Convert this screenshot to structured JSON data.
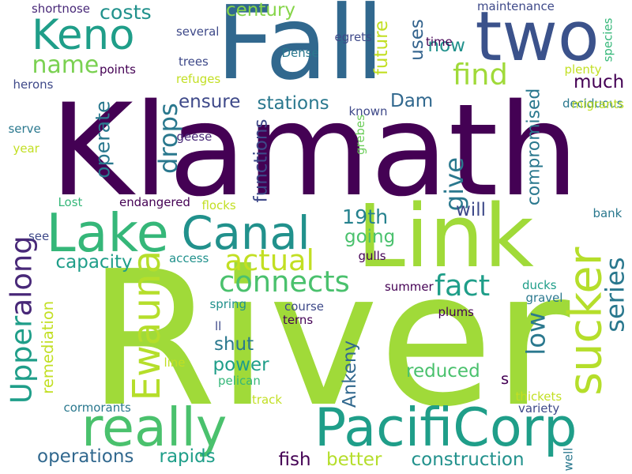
{
  "words": [
    {
      "text": "River",
      "color": "#a0da39"
    },
    {
      "text": "Klamath",
      "color": "#440154"
    },
    {
      "text": "Fall",
      "color": "#31688e"
    },
    {
      "text": "Link",
      "color": "#a0da39"
    },
    {
      "text": "two",
      "color": "#3b528b"
    },
    {
      "text": "Lake",
      "color": "#35b779"
    },
    {
      "text": "PacifiCorp",
      "color": "#1f9e89"
    },
    {
      "text": "really",
      "color": "#4ac16d"
    },
    {
      "text": "sucker",
      "color": "#b5de2b"
    },
    {
      "text": "Canal",
      "color": "#21918c"
    },
    {
      "text": "Keno",
      "color": "#1f9e89"
    },
    {
      "text": "Ewauna",
      "color": "#b5de2b"
    },
    {
      "text": "Upper",
      "color": "#1f9e89"
    },
    {
      "text": "along",
      "color": "#482878"
    },
    {
      "text": "fact",
      "color": "#1f9e89"
    },
    {
      "text": "connects",
      "color": "#4ac16d"
    },
    {
      "text": "actual",
      "color": "#c2df23"
    },
    {
      "text": "drops",
      "color": "#2a788e"
    },
    {
      "text": "give",
      "color": "#2a788e"
    },
    {
      "text": "series",
      "color": "#2a788e"
    },
    {
      "text": "find",
      "color": "#a0da39"
    },
    {
      "text": "low",
      "color": "#2a788e"
    },
    {
      "text": "name",
      "color": "#7ad151"
    },
    {
      "text": "century",
      "color": "#86d549"
    },
    {
      "text": "costs",
      "color": "#21918c"
    },
    {
      "text": "future",
      "color": "#c2df23"
    },
    {
      "text": "stations",
      "color": "#2a788e"
    },
    {
      "text": "ensure",
      "color": "#3e4989"
    },
    {
      "text": "operate",
      "color": "#2a788e"
    },
    {
      "text": "functions",
      "color": "#3e4989"
    },
    {
      "text": "compromised",
      "color": "#2a788e"
    },
    {
      "text": "much",
      "color": "#440154"
    },
    {
      "text": "now",
      "color": "#21918c"
    },
    {
      "text": "uses",
      "color": "#33638d"
    },
    {
      "text": "Dam",
      "color": "#31688e"
    },
    {
      "text": "19th",
      "color": "#26828e"
    },
    {
      "text": "going",
      "color": "#4ac16d"
    },
    {
      "text": "will",
      "color": "#3e4989"
    },
    {
      "text": "capacity",
      "color": "#1f9e89"
    },
    {
      "text": "shut",
      "color": "#2a788e"
    },
    {
      "text": "power",
      "color": "#1f9e89"
    },
    {
      "text": "reduced",
      "color": "#4ac16d"
    },
    {
      "text": "Ankeny",
      "color": "#31688e"
    },
    {
      "text": "operations",
      "color": "#31688e"
    },
    {
      "text": "rapids",
      "color": "#1f9e89"
    },
    {
      "text": "fish",
      "color": "#440154"
    },
    {
      "text": "better",
      "color": "#b5de2b"
    },
    {
      "text": "construction",
      "color": "#21918c"
    },
    {
      "text": "remediation",
      "color": "#c2df23"
    },
    {
      "text": "s",
      "color": "#440154"
    },
    {
      "text": "shortnose",
      "color": "#482878"
    },
    {
      "text": "several",
      "color": "#3e4989"
    },
    {
      "text": "egrets",
      "color": "#3e4989"
    },
    {
      "text": "time",
      "color": "#440154"
    },
    {
      "text": "maintenance",
      "color": "#3e4989"
    },
    {
      "text": "species",
      "color": "#35b779"
    },
    {
      "text": "plenty",
      "color": "#c2df23"
    },
    {
      "text": "Dense",
      "color": "#2a788e"
    },
    {
      "text": "trees",
      "color": "#3e4989"
    },
    {
      "text": "points",
      "color": "#440154"
    },
    {
      "text": "refuges",
      "color": "#c2df23"
    },
    {
      "text": "herons",
      "color": "#3e4989"
    },
    {
      "text": "known",
      "color": "#3e4989"
    },
    {
      "text": "deciduous",
      "color": "#2a788e"
    },
    {
      "text": "migrants",
      "color": "#c2df23"
    },
    {
      "text": "geese",
      "color": "#482878"
    },
    {
      "text": "grebes",
      "color": "#6ccd5a"
    },
    {
      "text": "serve",
      "color": "#2a788e"
    },
    {
      "text": "year",
      "color": "#c2df23"
    },
    {
      "text": "Lost",
      "color": "#35b779"
    },
    {
      "text": "endangered",
      "color": "#440154"
    },
    {
      "text": "flocks",
      "color": "#c2df23"
    },
    {
      "text": "bank",
      "color": "#2a788e"
    },
    {
      "text": "see",
      "color": "#3e4989"
    },
    {
      "text": "access",
      "color": "#21918c"
    },
    {
      "text": "gulls",
      "color": "#440154"
    },
    {
      "text": "summer",
      "color": "#440154"
    },
    {
      "text": "ducks",
      "color": "#1f9e89"
    },
    {
      "text": "gravel",
      "color": "#2a788e"
    },
    {
      "text": "spring",
      "color": "#21918c"
    },
    {
      "text": "course",
      "color": "#3e4989"
    },
    {
      "text": "terns",
      "color": "#440154"
    },
    {
      "text": "plums",
      "color": "#440154"
    },
    {
      "text": "ll",
      "color": "#3e4989"
    },
    {
      "text": "line",
      "color": "#c2df23"
    },
    {
      "text": "pelican",
      "color": "#35b779"
    },
    {
      "text": "thickets",
      "color": "#c2df23"
    },
    {
      "text": "track",
      "color": "#c2df23"
    },
    {
      "text": "cormorants",
      "color": "#2a788e"
    },
    {
      "text": "variety",
      "color": "#3e4989"
    },
    {
      "text": "well",
      "color": "#2a788e"
    }
  ]
}
